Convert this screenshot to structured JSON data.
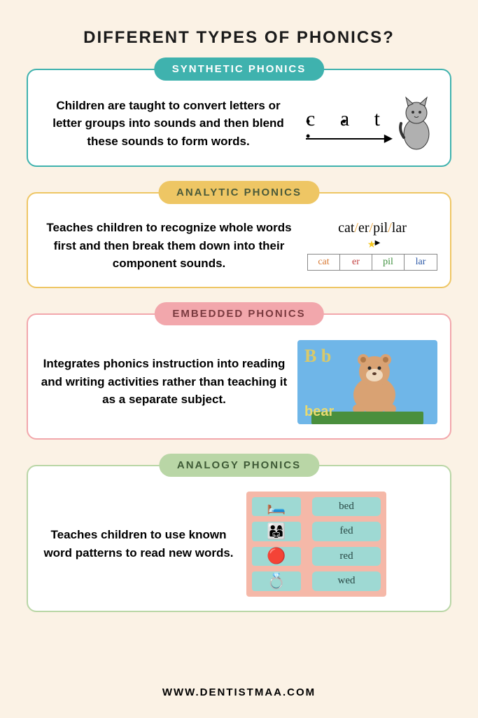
{
  "title": {
    "text": "DIFFERENT TYPES OF PHONICS?",
    "fontsize": 24,
    "color": "#1a1a1a"
  },
  "footer": {
    "text": "WWW.DENTISTMAA.COM",
    "color": "#1a1a1a"
  },
  "background_color": "#fbf2e5",
  "cards": [
    {
      "id": "synthetic",
      "badge_text": "SYNTHETIC PHONICS",
      "badge_bg": "#3fb2ae",
      "badge_color": "#ffffff",
      "border_color": "#3fb2ae",
      "desc": "Children are taught to convert letters or letter groups into sounds and then blend these sounds to form words.",
      "illus": {
        "kind": "synthetic",
        "word_letters": "c a t",
        "dot_char": "• • •",
        "arrow": "→",
        "cat_color": "#888888"
      }
    },
    {
      "id": "analytic",
      "badge_text": "ANALYTIC PHONICS",
      "badge_bg": "#eec664",
      "badge_color": "#4a5a3a",
      "border_color": "#eec664",
      "desc": "Teaches children to recognize whole words first and then break them down into their component sounds.",
      "illus": {
        "kind": "analytic",
        "word_html_parts": [
          "cat",
          "er",
          "pil",
          "lar"
        ],
        "slash_color": "#e8a23a",
        "cell_colors": [
          "#d97b36",
          "#c24040",
          "#3c8f3c",
          "#2e5aa8"
        ]
      }
    },
    {
      "id": "embedded",
      "badge_text": "EMBEDDED PHONICS",
      "badge_bg": "#f2a7ac",
      "badge_color": "#7a3a3f",
      "border_color": "#f2a7ac",
      "desc": "Integrates phonics instruction into reading and writing activities rather than teaching it as a separate subject.",
      "illus": {
        "kind": "embedded",
        "sky_color": "#6fb6e8",
        "ground_color": "#4a8f3d",
        "letter_label": "B b",
        "letter_color": "#d9c96a",
        "word_label": "bear",
        "word_color": "#e9da6f",
        "bear_body": "#d9a273",
        "bear_face": "#f0d9be",
        "bear_ear": "#b07a4a"
      }
    },
    {
      "id": "analogy",
      "badge_text": "ANALOGY PHONICS",
      "badge_bg": "#b9d6a6",
      "badge_color": "#3e5a36",
      "border_color": "#b9d6a6",
      "desc": "Teaches children to use known word patterns to read new words.",
      "illus": {
        "kind": "analogy",
        "panel_bg": "#f5b8a8",
        "pic_bg": "#9ed9d3",
        "word_bg": "#9ed9d3",
        "word_color": "#2a4a46",
        "rows": [
          {
            "emoji": "🛏️",
            "word": "bed"
          },
          {
            "emoji": "👨‍👩‍👧",
            "word": "fed"
          },
          {
            "emoji": "🔴",
            "word": "red"
          },
          {
            "emoji": "💍",
            "word": "wed"
          }
        ]
      }
    }
  ]
}
